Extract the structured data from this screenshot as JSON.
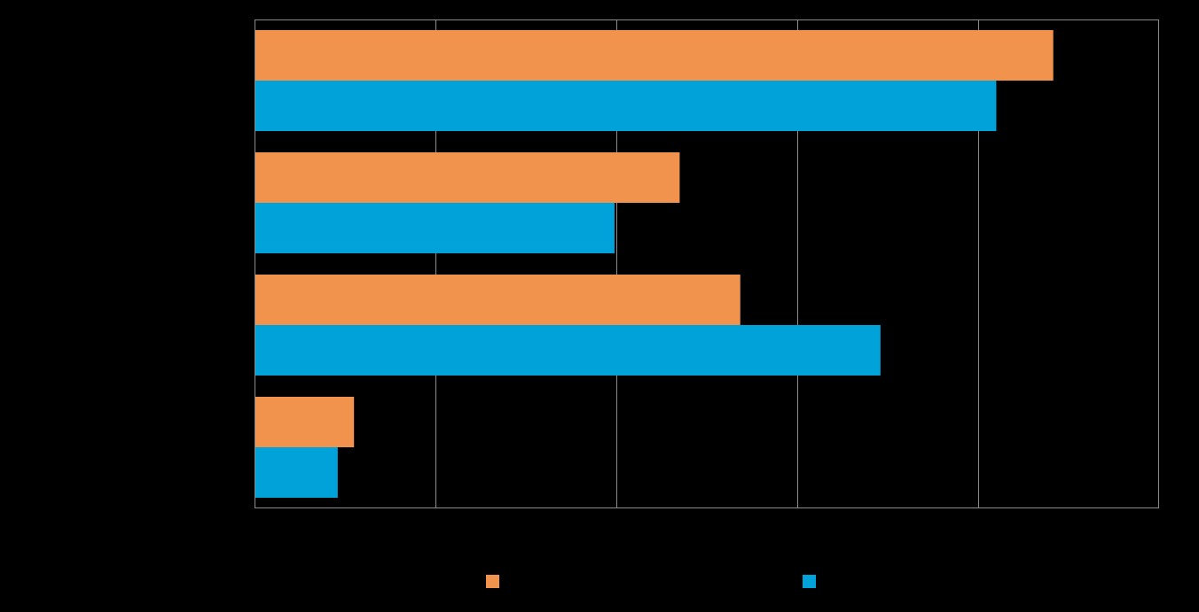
{
  "chart_data": {
    "type": "bar",
    "orientation": "horizontal",
    "title": "",
    "xlabel": "",
    "ylabel": "",
    "categories": [
      "",
      "",
      "",
      ""
    ],
    "xlim": [
      0,
      100
    ],
    "x_gridlines": [
      20,
      40,
      60,
      80
    ],
    "grid": true,
    "legend_position": "bottom",
    "series": [
      {
        "name": "",
        "color": "#F2934D",
        "values": [
          88.3,
          47.0,
          53.7,
          11.0
        ]
      },
      {
        "name": "",
        "color": "#00A3D9",
        "values": [
          82.0,
          39.8,
          69.2,
          9.2
        ]
      }
    ],
    "background_color": "#000000",
    "grid_color": "#8C8C8C"
  }
}
